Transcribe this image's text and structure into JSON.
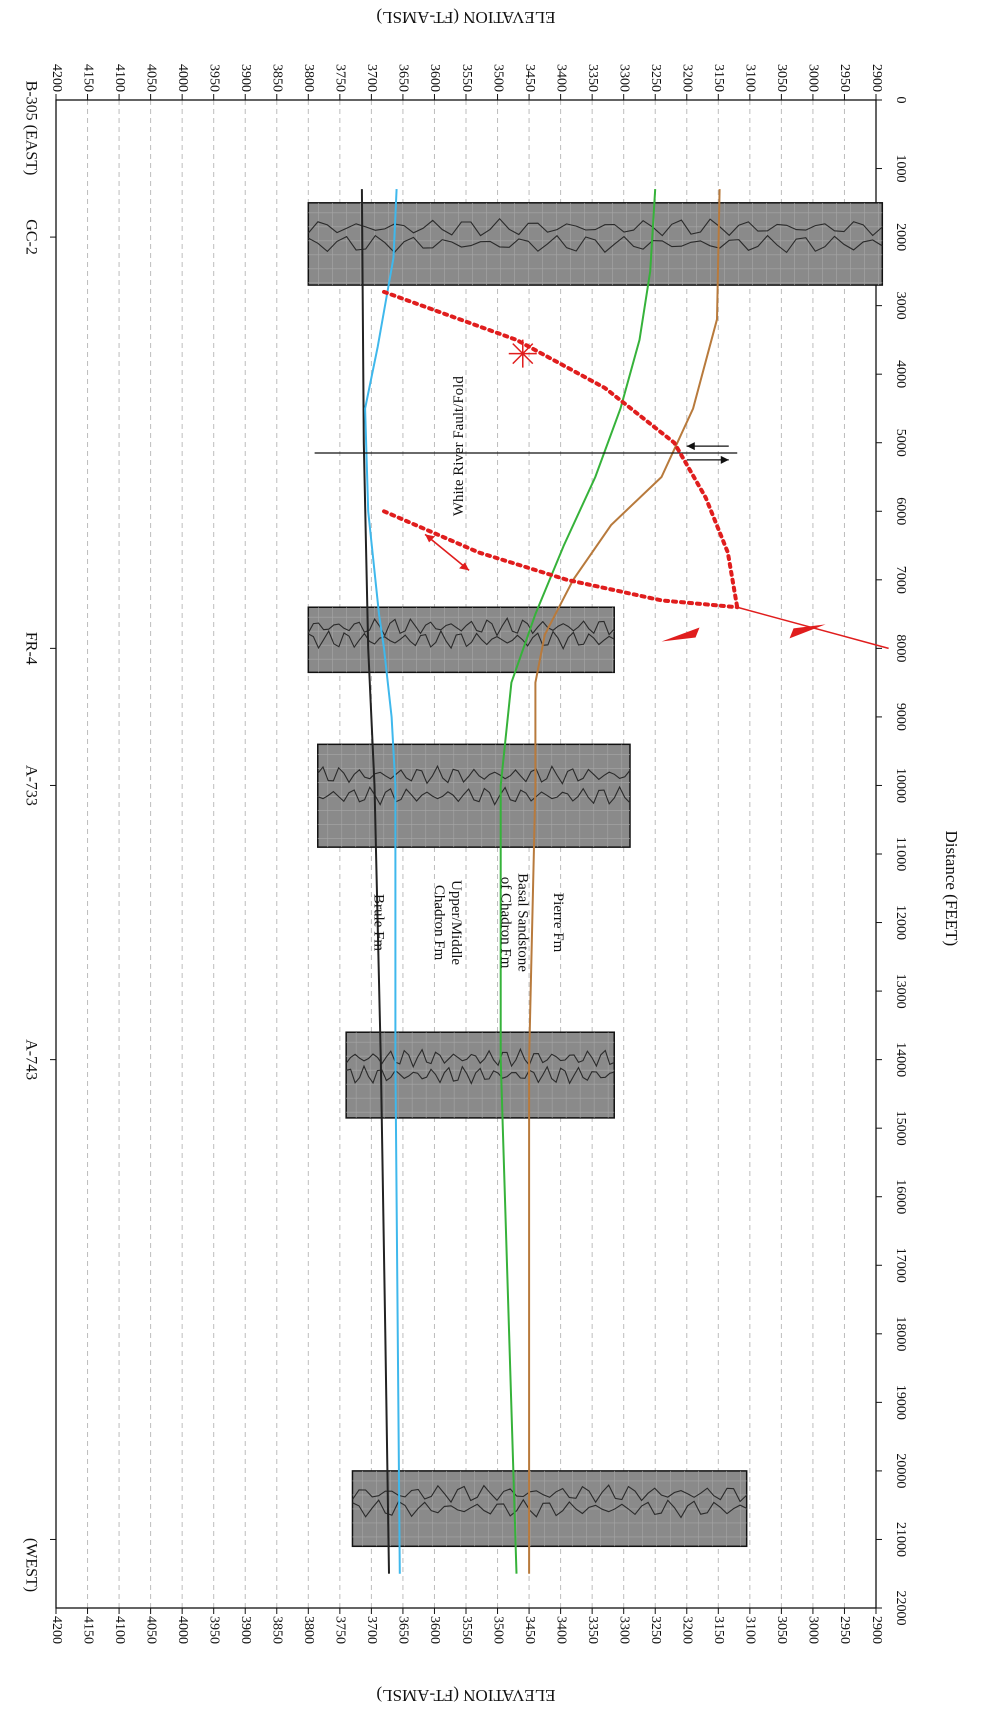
{
  "chart_data": {
    "type": "line",
    "orientation": "rotated-90-clockwise",
    "x_axis": {
      "label": "Distance (FEET)",
      "range": [
        0,
        22000
      ],
      "ticks": [
        0,
        1000,
        2000,
        3000,
        4000,
        5000,
        6000,
        7000,
        8000,
        9000,
        10000,
        11000,
        12000,
        13000,
        14000,
        15000,
        16000,
        17000,
        18000,
        19000,
        20000,
        21000,
        22000
      ]
    },
    "y_axis": {
      "label": "ELEVATION (FT-AMSL)",
      "range": [
        2900,
        4200
      ],
      "ticks": [
        2900,
        2950,
        3000,
        3050,
        3100,
        3150,
        3200,
        3250,
        3300,
        3350,
        3400,
        3450,
        3500,
        3550,
        3600,
        3650,
        3700,
        3750,
        3800,
        3850,
        3900,
        3950,
        4000,
        4050,
        4100,
        4150,
        4200
      ]
    },
    "grid": true,
    "direction_labels": {
      "west": "(WEST)",
      "east": "B-305 (EAST)"
    },
    "wells": [
      {
        "name": "GC-2",
        "x": 2000,
        "top": 3800,
        "bottom": 2890,
        "log_x0": 1500,
        "log_x1": 2700
      },
      {
        "name": "FR-4",
        "x": 8000,
        "top": 3800,
        "bottom": 3315,
        "log_x0": 7400,
        "log_x1": 8350
      },
      {
        "name": "A-733",
        "x": 10000,
        "top": 3785,
        "bottom": 3290,
        "log_x0": 9400,
        "log_x1": 10900
      },
      {
        "name": "A-743",
        "x": 14000,
        "top": 3740,
        "bottom": 3315,
        "log_x0": 13600,
        "log_x1": 14850
      },
      {
        "name": "B-305",
        "x": 21000,
        "top": 3730,
        "bottom": 3105,
        "log_x0": 20000,
        "log_x1": 21100
      }
    ],
    "series": [
      {
        "name": "Brule Fm",
        "color": "#222222",
        "x": [
          1300,
          5000,
          8000,
          10000,
          14000,
          18000,
          21500
        ],
        "y": [
          3715,
          3712,
          3705,
          3695,
          3685,
          3678,
          3672
        ]
      },
      {
        "name": "Upper/Middle Chadron Fm",
        "color": "#3fb8ec",
        "x": [
          1300,
          2300,
          3600,
          4500,
          6000,
          7500,
          8000,
          9000,
          10000,
          14000,
          21500
        ],
        "y": [
          3660,
          3665,
          3690,
          3710,
          3705,
          3688,
          3680,
          3668,
          3662,
          3662,
          3655
        ]
      },
      {
        "name": "Basal Sandstone of Chadron Fm",
        "color": "#36b23a",
        "x": [
          1300,
          2500,
          3500,
          4500,
          5500,
          6500,
          7500,
          8500,
          10000,
          14000,
          21500
        ],
        "y": [
          3250,
          3258,
          3275,
          3305,
          3345,
          3395,
          3440,
          3478,
          3495,
          3495,
          3470
        ]
      },
      {
        "name": "Pierre Fm",
        "color": "#b87a3c",
        "x": [
          1300,
          3200,
          4500,
          5500,
          6200,
          7000,
          7800,
          8500,
          10000,
          14000,
          21500
        ],
        "y": [
          3148,
          3152,
          3190,
          3240,
          3320,
          3380,
          3425,
          3440,
          3440,
          3450,
          3450
        ]
      }
    ],
    "annotations": [
      {
        "text": "White River Fault/Fold",
        "x": 5050,
        "y": 3560
      },
      {
        "text": "Brule Fm",
        "x": 12000,
        "y": 3690
      },
      {
        "text": "Upper/Middle Chadron Fm",
        "x": 12000,
        "y": 3580
      },
      {
        "text": "Basal Sandstone of Chadron Fm",
        "x": 12000,
        "y": 3475
      },
      {
        "text": "Pierre Fm",
        "x": 12000,
        "y": 3405
      }
    ],
    "fault_line": {
      "x": 5150,
      "y_top": 3790,
      "y_bottom": 3120
    },
    "dotted_fold_left": {
      "x": [
        2800,
        3500,
        4200,
        5000,
        5800,
        6600,
        7400
      ],
      "y": [
        3680,
        3470,
        3330,
        3220,
        3170,
        3135,
        3120
      ]
    },
    "dotted_fold_right": {
      "x": [
        6000,
        6600,
        7000,
        7300,
        7400
      ],
      "y": [
        3680,
        3530,
        3390,
        3240,
        3120
      ]
    }
  }
}
